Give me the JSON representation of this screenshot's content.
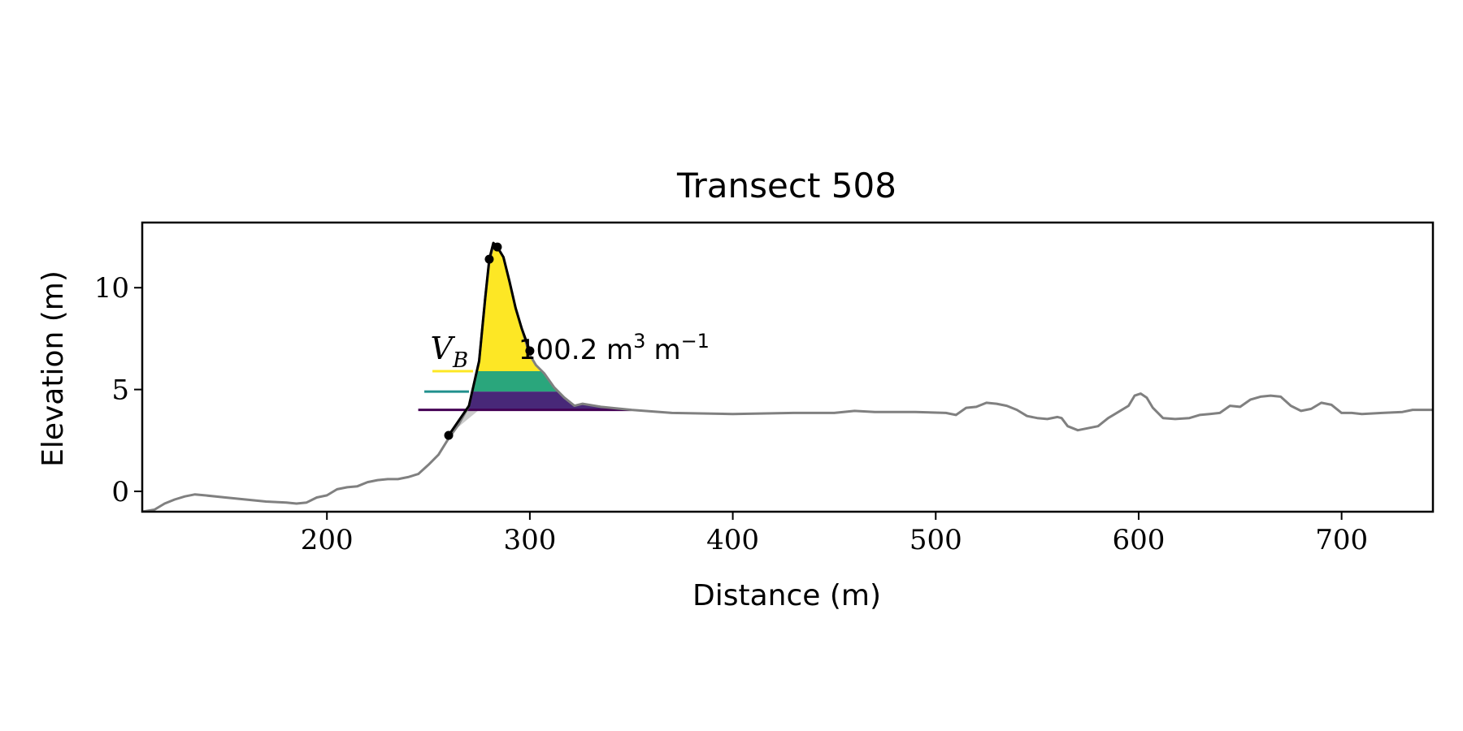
{
  "chart_data": {
    "type": "line",
    "title": "Transect 508",
    "xlabel": "Distance (m)",
    "ylabel": "Elevation (m)",
    "xlim": [
      109,
      745
    ],
    "ylim": [
      -1.0,
      13.2
    ],
    "x_ticks": [
      200,
      300,
      400,
      500,
      600,
      700
    ],
    "y_ticks": [
      0,
      5,
      10
    ],
    "grid": false,
    "legend": "none",
    "annotation": {
      "symbol": "V",
      "subscript": "B",
      "value_text": "100.2 m",
      "unit_exp": "3",
      "unit_tail": "m",
      "unit_tail_exp": "−1",
      "x": 300,
      "y": 6.9
    },
    "profile": {
      "color": "#808080",
      "points": [
        [
          109,
          -1.0
        ],
        [
          115,
          -0.9
        ],
        [
          120,
          -0.6
        ],
        [
          125,
          -0.4
        ],
        [
          130,
          -0.25
        ],
        [
          135,
          -0.15
        ],
        [
          140,
          -0.2
        ],
        [
          150,
          -0.3
        ],
        [
          160,
          -0.4
        ],
        [
          170,
          -0.5
        ],
        [
          180,
          -0.55
        ],
        [
          185,
          -0.6
        ],
        [
          190,
          -0.55
        ],
        [
          195,
          -0.3
        ],
        [
          200,
          -0.2
        ],
        [
          205,
          0.1
        ],
        [
          210,
          0.2
        ],
        [
          215,
          0.25
        ],
        [
          220,
          0.45
        ],
        [
          225,
          0.55
        ],
        [
          230,
          0.6
        ],
        [
          235,
          0.6
        ],
        [
          240,
          0.7
        ],
        [
          245,
          0.85
        ],
        [
          250,
          1.3
        ],
        [
          255,
          1.8
        ],
        [
          260,
          2.6
        ],
        [
          265,
          3.3
        ],
        [
          270,
          4.2
        ],
        [
          275,
          6.4
        ],
        [
          278,
          9.5
        ],
        [
          280,
          11.3
        ],
        [
          282,
          12.1
        ],
        [
          284,
          12.0
        ],
        [
          287,
          11.5
        ],
        [
          290,
          10.3
        ],
        [
          293,
          9.0
        ],
        [
          296,
          8.0
        ],
        [
          300,
          6.7
        ],
        [
          303,
          6.2
        ],
        [
          307,
          5.8
        ],
        [
          312,
          5.1
        ],
        [
          317,
          4.6
        ],
        [
          322,
          4.2
        ],
        [
          326,
          4.3
        ],
        [
          335,
          4.15
        ],
        [
          350,
          4.0
        ],
        [
          370,
          3.85
        ],
        [
          400,
          3.8
        ],
        [
          430,
          3.85
        ],
        [
          450,
          3.85
        ],
        [
          460,
          3.95
        ],
        [
          470,
          3.9
        ],
        [
          490,
          3.9
        ],
        [
          505,
          3.85
        ],
        [
          510,
          3.75
        ],
        [
          515,
          4.1
        ],
        [
          520,
          4.15
        ],
        [
          525,
          4.35
        ],
        [
          530,
          4.3
        ],
        [
          535,
          4.2
        ],
        [
          540,
          4.0
        ],
        [
          545,
          3.7
        ],
        [
          550,
          3.6
        ],
        [
          555,
          3.55
        ],
        [
          560,
          3.65
        ],
        [
          562,
          3.6
        ],
        [
          565,
          3.2
        ],
        [
          570,
          3.0
        ],
        [
          575,
          3.1
        ],
        [
          580,
          3.2
        ],
        [
          585,
          3.6
        ],
        [
          590,
          3.9
        ],
        [
          595,
          4.2
        ],
        [
          598,
          4.7
        ],
        [
          601,
          4.8
        ],
        [
          604,
          4.6
        ],
        [
          607,
          4.1
        ],
        [
          612,
          3.6
        ],
        [
          618,
          3.55
        ],
        [
          625,
          3.6
        ],
        [
          630,
          3.75
        ],
        [
          635,
          3.8
        ],
        [
          640,
          3.85
        ],
        [
          645,
          4.2
        ],
        [
          650,
          4.15
        ],
        [
          655,
          4.5
        ],
        [
          660,
          4.65
        ],
        [
          665,
          4.7
        ],
        [
          670,
          4.65
        ],
        [
          675,
          4.2
        ],
        [
          680,
          3.95
        ],
        [
          685,
          4.05
        ],
        [
          690,
          4.35
        ],
        [
          695,
          4.25
        ],
        [
          700,
          3.85
        ],
        [
          705,
          3.85
        ],
        [
          710,
          3.8
        ],
        [
          720,
          3.85
        ],
        [
          730,
          3.9
        ],
        [
          735,
          4.0
        ],
        [
          745,
          4.0
        ]
      ]
    },
    "dune_outline": {
      "color": "#000000",
      "points": [
        [
          260,
          2.75
        ],
        [
          270,
          4.2
        ],
        [
          275,
          6.4
        ],
        [
          278,
          9.5
        ],
        [
          280,
          11.4
        ],
        [
          282,
          12.2
        ],
        [
          284,
          12.0
        ],
        [
          287,
          11.5
        ],
        [
          290,
          10.3
        ],
        [
          293,
          9.0
        ],
        [
          296,
          8.0
        ],
        [
          300,
          6.9
        ]
      ],
      "markers": [
        [
          260,
          2.75
        ],
        [
          280,
          11.4
        ],
        [
          284,
          12.0
        ],
        [
          300,
          6.9
        ]
      ]
    },
    "levels": [
      {
        "color": "#fde725",
        "base": 5.9,
        "line_start": 252,
        "line_end": 272
      },
      {
        "color": "#21908d",
        "base": 4.9,
        "line_start": 248,
        "line_end": 270
      },
      {
        "color": "#440154",
        "base": 4.0,
        "line_start": 245,
        "line_end": 350
      }
    ],
    "bands": [
      {
        "color": "#fde725",
        "low": 5.9,
        "high": 13.0
      },
      {
        "color": "#2aa67c",
        "low": 4.9,
        "high": 5.9
      },
      {
        "color": "#482878",
        "low": 4.0,
        "high": 4.9
      }
    ],
    "shadow_color": "#cccccc"
  }
}
